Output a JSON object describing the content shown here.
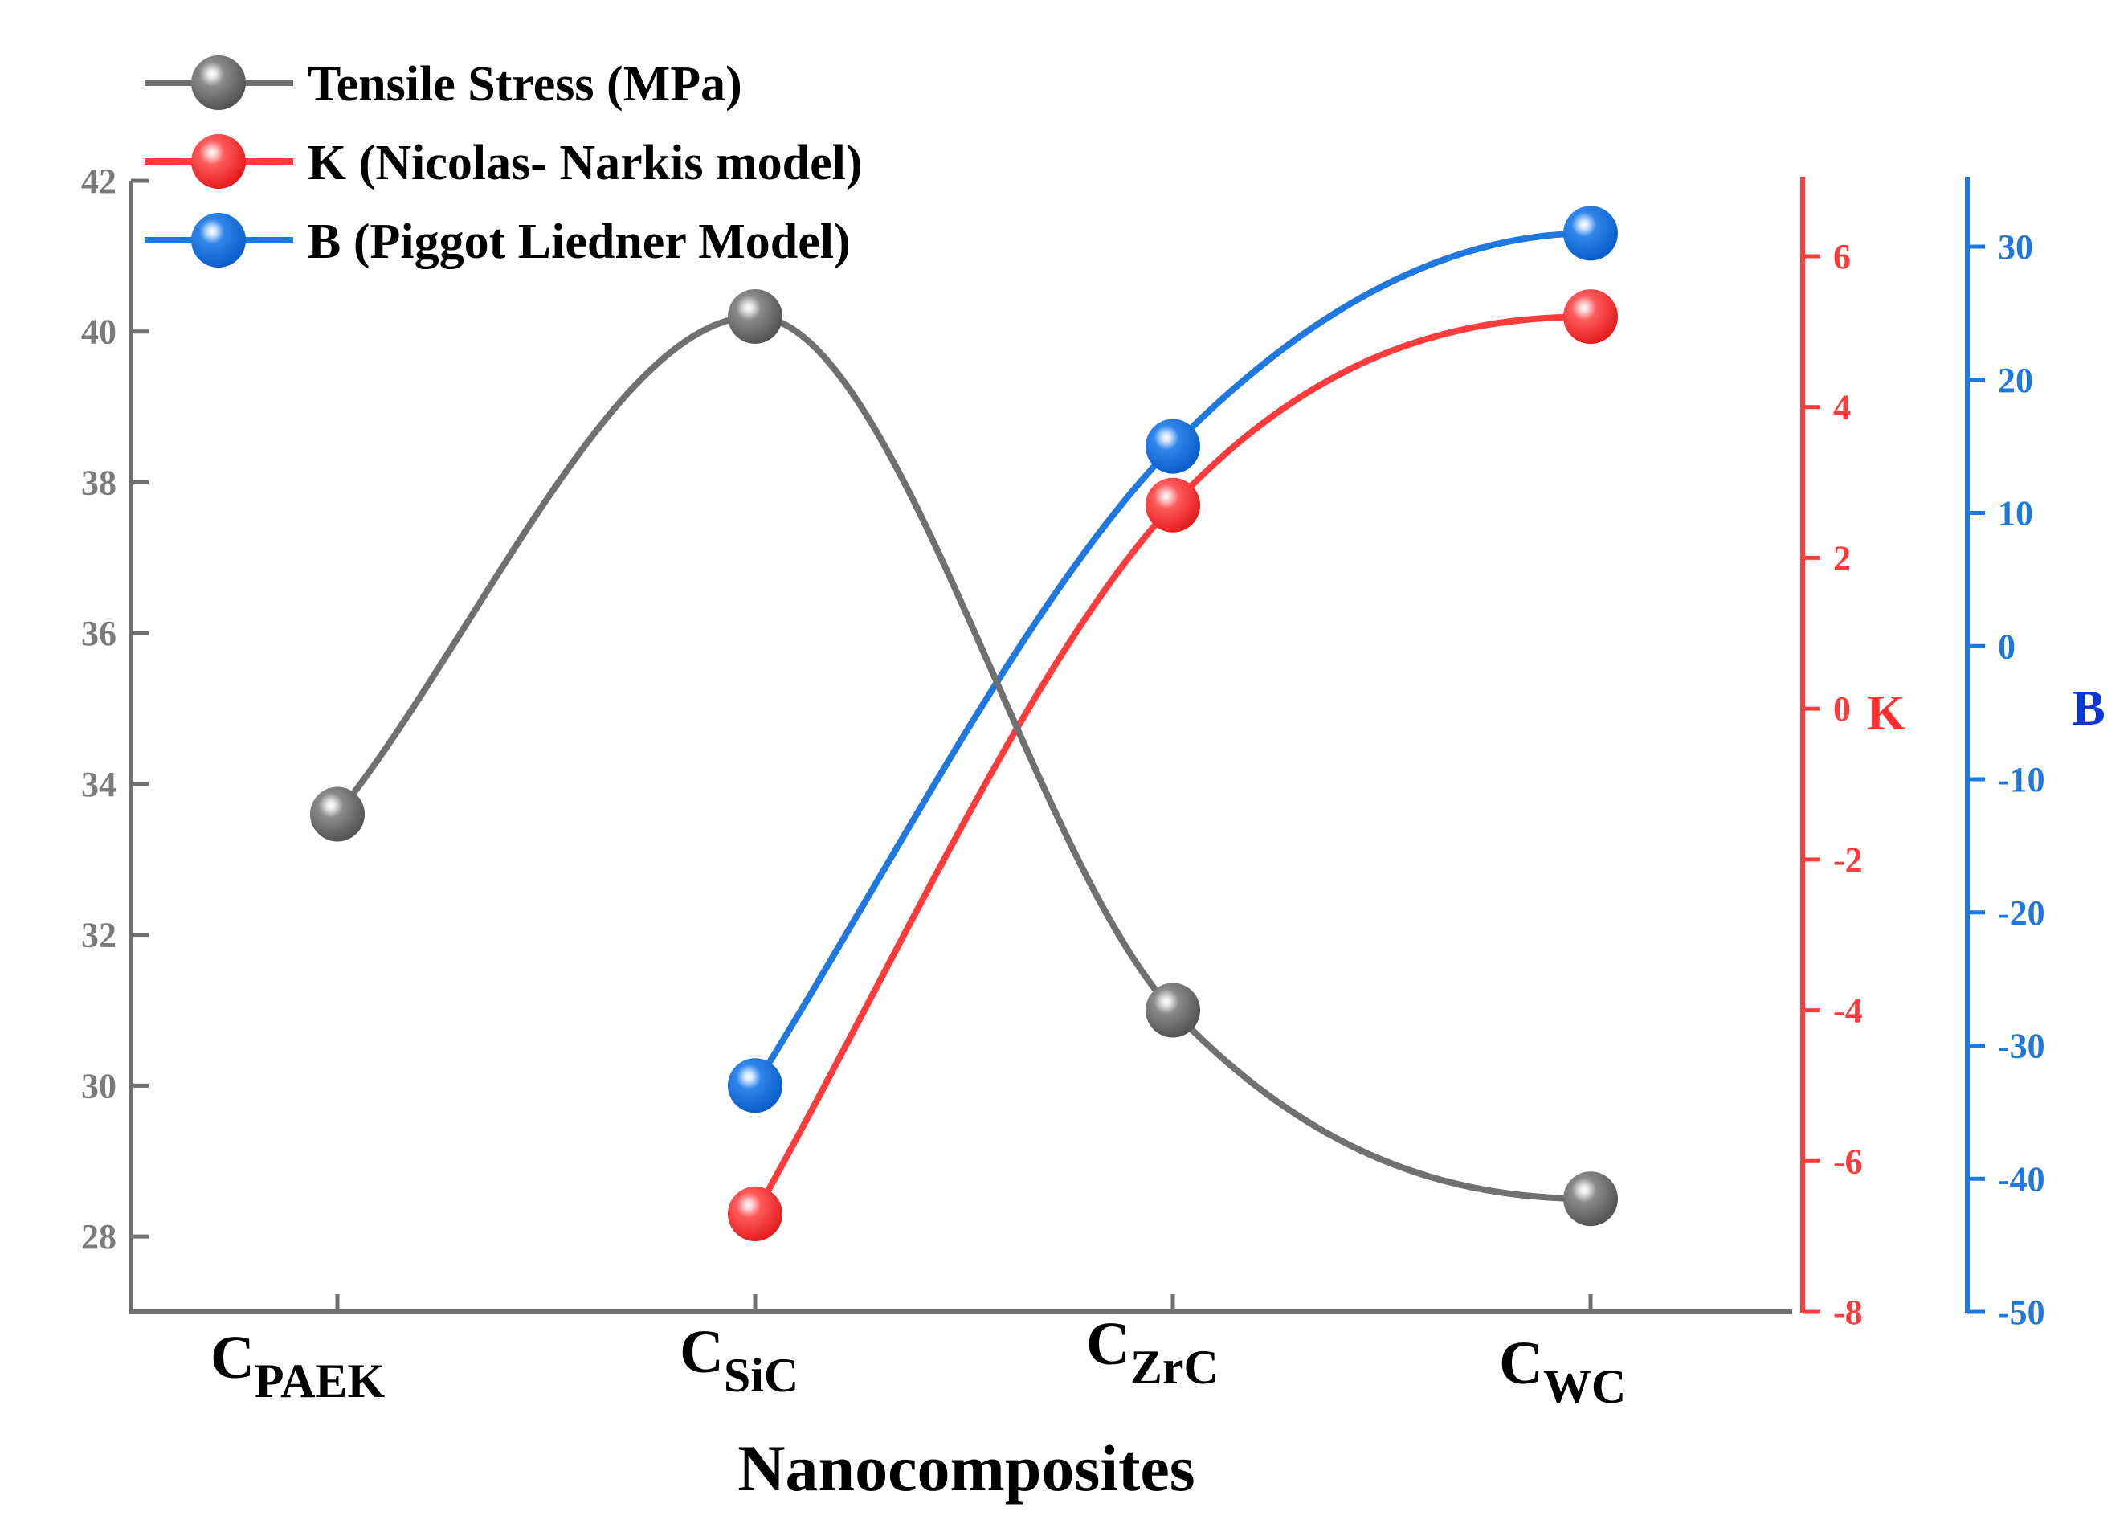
{
  "chart_data": {
    "type": "line",
    "smooth": true,
    "categories": [
      {
        "base": "C",
        "sub": "PAEK"
      },
      {
        "base": "C",
        "sub": "SiC"
      },
      {
        "base": "C",
        "sub": "ZrC"
      },
      {
        "base": "C",
        "sub": "WC"
      }
    ],
    "xlabel": "Nanocomposites",
    "legend_position": "top-left",
    "series": [
      {
        "id": "tensile",
        "name": "Tensile Stress (MPa)",
        "axis": "left",
        "color": "#707070",
        "values": [
          33.6,
          40.2,
          31.0,
          28.5
        ]
      },
      {
        "id": "k",
        "name": "K (Nicolas- Narkis model)",
        "axis": "k",
        "color": "#ff3b3b",
        "values": [
          null,
          -6.7,
          2.7,
          5.2
        ]
      },
      {
        "id": "b",
        "name": "B (Piggot Liedner Model)",
        "axis": "b",
        "color": "#1f78e0",
        "values": [
          null,
          -33.0,
          15.0,
          31.0
        ]
      }
    ],
    "axes": {
      "left": {
        "label": "",
        "ylim": [
          27,
          42
        ],
        "ticks": [
          28,
          30,
          32,
          34,
          36,
          38,
          40,
          42
        ],
        "color": "#7b7b7b"
      },
      "k": {
        "label": "K",
        "ylim": [
          -8,
          7
        ],
        "ticks": [
          -8,
          -6,
          -4,
          -2,
          0,
          2,
          4,
          6
        ],
        "color": "#ff3b3b",
        "label_color": "#ff2d2d"
      },
      "b": {
        "label": "B",
        "ylim": [
          -50,
          35
        ],
        "ticks": [
          -50,
          -40,
          -30,
          -20,
          -10,
          0,
          10,
          20,
          30
        ],
        "color": "#1f78e0",
        "label_color": "#0a35d6"
      }
    }
  }
}
